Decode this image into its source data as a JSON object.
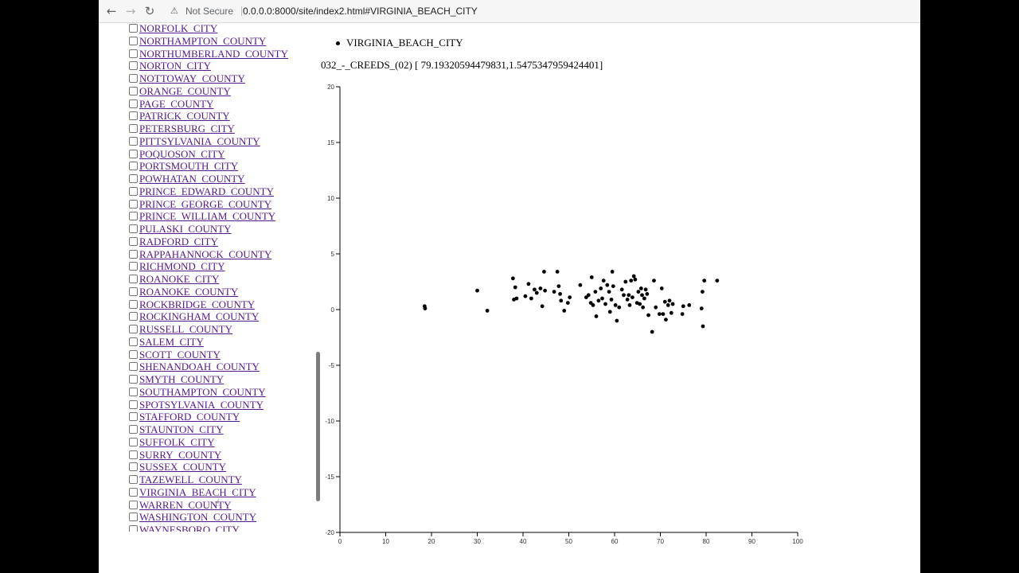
{
  "browser": {
    "security_label": "Not Secure",
    "url": "0.0.0.0:8000/site/index2.html#VIRGINIA_BEACH_CITY"
  },
  "counties": [
    "NORFOLK_CITY",
    "NORTHAMPTON_COUNTY",
    "NORTHUMBERLAND_COUNTY",
    "NORTON_CITY",
    "NOTTOWAY_COUNTY",
    "ORANGE_COUNTY",
    "PAGE_COUNTY",
    "PATRICK_COUNTY",
    "PETERSBURG_CITY",
    "PITTSYLVANIA_COUNTY",
    "POQUOSON_CITY",
    "PORTSMOUTH_CITY",
    "POWHATAN_COUNTY",
    "PRINCE_EDWARD_COUNTY",
    "PRINCE_GEORGE_COUNTY",
    "PRINCE_WILLIAM_COUNTY",
    "PULASKI_COUNTY",
    "RADFORD_CITY",
    "RAPPAHANNOCK_COUNTY",
    "RICHMOND_CITY",
    "ROANOKE_CITY",
    "ROANOKE_COUNTY",
    "ROCKBRIDGE_COUNTY",
    "ROCKINGHAM_COUNTY",
    "RUSSELL_COUNTY",
    "SALEM_CITY",
    "SCOTT_COUNTY",
    "SHENANDOAH_COUNTY",
    "SMYTH_COUNTY",
    "SOUTHAMPTON_COUNTY",
    "SPOTSYLVANIA_COUNTY",
    "STAFFORD_COUNTY",
    "STAUNTON_CITY",
    "SUFFOLK_CITY",
    "SURRY_COUNTY",
    "SUSSEX_COUNTY",
    "TAZEWELL_COUNTY",
    "VIRGINIA_BEACH_CITY",
    "WARREN_COUNTY",
    "WASHINGTON_COUNTY",
    "WAYNESBORO_CITY"
  ],
  "selected": [
    "VIRGINIA_BEACH_CITY"
  ],
  "series_label": "032_-_CREEDS_(02) [ 79.19320594479831,1.5475347959424401]",
  "chart_data": {
    "type": "scatter",
    "xlim": [
      0,
      100
    ],
    "ylim": [
      -20,
      20
    ],
    "xticks": [
      0,
      10,
      20,
      30,
      40,
      50,
      60,
      70,
      80,
      90,
      100
    ],
    "yticks": [
      20,
      15,
      10,
      5,
      0,
      -5,
      -10,
      -15,
      -20
    ],
    "grid": false,
    "color": "#000000",
    "points": [
      [
        18.5,
        0.3
      ],
      [
        18.6,
        0.1
      ],
      [
        30.0,
        1.7
      ],
      [
        32.2,
        -0.1
      ],
      [
        37.8,
        2.8
      ],
      [
        38.0,
        0.9
      ],
      [
        38.3,
        2.0
      ],
      [
        38.6,
        1.0
      ],
      [
        40.5,
        1.2
      ],
      [
        41.2,
        2.3
      ],
      [
        41.8,
        1.0
      ],
      [
        42.5,
        1.8
      ],
      [
        43.0,
        1.5
      ],
      [
        43.8,
        1.9
      ],
      [
        44.2,
        0.3
      ],
      [
        44.6,
        3.4
      ],
      [
        44.8,
        1.7
      ],
      [
        46.8,
        1.6
      ],
      [
        47.5,
        3.4
      ],
      [
        47.8,
        2.1
      ],
      [
        48.1,
        1.4
      ],
      [
        48.3,
        0.8
      ],
      [
        49.0,
        -0.1
      ],
      [
        49.8,
        0.6
      ],
      [
        50.2,
        1.1
      ],
      [
        52.5,
        2.2
      ],
      [
        53.8,
        1.1
      ],
      [
        54.3,
        1.3
      ],
      [
        54.8,
        0.6
      ],
      [
        55.0,
        2.9
      ],
      [
        55.3,
        0.4
      ],
      [
        55.8,
        1.6
      ],
      [
        56.0,
        -0.6
      ],
      [
        56.5,
        0.8
      ],
      [
        57.0,
        1.9
      ],
      [
        57.3,
        1.0
      ],
      [
        57.6,
        2.6
      ],
      [
        58.0,
        0.5
      ],
      [
        58.4,
        2.2
      ],
      [
        58.8,
        1.6
      ],
      [
        59.0,
        -0.2
      ],
      [
        59.3,
        0.9
      ],
      [
        59.5,
        3.4
      ],
      [
        59.7,
        2.1
      ],
      [
        60.2,
        0.4
      ],
      [
        60.5,
        -1.0
      ],
      [
        61.0,
        0.2
      ],
      [
        61.6,
        1.8
      ],
      [
        62.0,
        1.3
      ],
      [
        62.4,
        2.5
      ],
      [
        62.8,
        0.9
      ],
      [
        63.1,
        1.3
      ],
      [
        63.3,
        0.4
      ],
      [
        63.6,
        2.6
      ],
      [
        63.9,
        1.1
      ],
      [
        64.2,
        3.0
      ],
      [
        64.5,
        2.7
      ],
      [
        64.9,
        0.6
      ],
      [
        65.2,
        1.6
      ],
      [
        65.5,
        0.5
      ],
      [
        65.8,
        1.9
      ],
      [
        66.0,
        1.3
      ],
      [
        66.2,
        0.2
      ],
      [
        66.5,
        1.0
      ],
      [
        66.8,
        1.8
      ],
      [
        67.1,
        1.4
      ],
      [
        67.4,
        -0.5
      ],
      [
        68.2,
        -2.0
      ],
      [
        68.6,
        2.6
      ],
      [
        69.0,
        0.2
      ],
      [
        69.8,
        -0.4
      ],
      [
        70.3,
        1.9
      ],
      [
        70.6,
        -0.4
      ],
      [
        71.0,
        0.7
      ],
      [
        71.2,
        -0.9
      ],
      [
        71.7,
        0.4
      ],
      [
        72.0,
        0.8
      ],
      [
        72.4,
        -0.3
      ],
      [
        72.7,
        0.5
      ],
      [
        74.8,
        -0.4
      ],
      [
        75.0,
        0.3
      ],
      [
        76.3,
        0.4
      ],
      [
        79.0,
        0.1
      ],
      [
        79.2,
        1.6
      ],
      [
        79.3,
        -1.5
      ],
      [
        79.6,
        2.6
      ],
      [
        82.4,
        2.6
      ]
    ]
  }
}
